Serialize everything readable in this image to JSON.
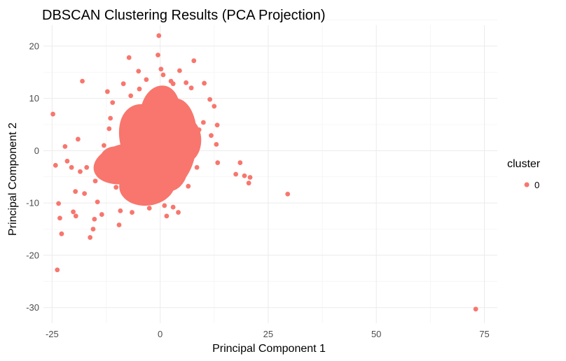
{
  "chart_data": {
    "type": "scatter",
    "title": "DBSCAN Clustering Results (PCA Projection)",
    "xlabel": "Principal Component 1",
    "ylabel": "Principal Component 2",
    "xlim": [
      -27,
      78
    ],
    "ylim": [
      -33,
      24
    ],
    "xticks": [
      -25,
      0,
      25,
      50,
      75
    ],
    "yticks": [
      20,
      10,
      0,
      -10,
      -20,
      -30
    ],
    "xtick_labels": [
      "-25",
      "0",
      "25",
      "50",
      "75"
    ],
    "ytick_labels": [
      "20",
      "10",
      "0",
      "-10",
      "-20",
      "-30"
    ],
    "grid": true,
    "legend": {
      "title": "cluster",
      "placement": "right",
      "entries": [
        "0"
      ]
    },
    "colors": {
      "cluster_0": "#f8766d"
    },
    "series": [
      {
        "name": "0",
        "points": [
          [
            -24.8,
            7.0
          ],
          [
            -24.2,
            -2.8
          ],
          [
            -23.8,
            -22.8
          ],
          [
            -23.2,
            -12.9
          ],
          [
            -23.5,
            -10.1
          ],
          [
            -22.8,
            -15.9
          ],
          [
            -22.0,
            0.8
          ],
          [
            -21.5,
            -2.0
          ],
          [
            -20.5,
            -3.2
          ],
          [
            -20.1,
            -11.7
          ],
          [
            -19.5,
            -12.5
          ],
          [
            -19.6,
            -7.8
          ],
          [
            -19.0,
            2.2
          ],
          [
            -18.0,
            13.3
          ],
          [
            -18.5,
            -4.0
          ],
          [
            -17.5,
            -8.2
          ],
          [
            -17.0,
            -3.2
          ],
          [
            -16.2,
            -16.6
          ],
          [
            -15.5,
            -15.0
          ],
          [
            -15.2,
            -13.1
          ],
          [
            -15.0,
            -5.8
          ],
          [
            -14.5,
            -9.8
          ],
          [
            -14.0,
            -3.5
          ],
          [
            -13.5,
            -12.2
          ],
          [
            -13.0,
            1.0
          ],
          [
            -12.2,
            11.3
          ],
          [
            -11.8,
            4.2
          ],
          [
            -11.0,
            9.2
          ],
          [
            -10.2,
            -7.0
          ],
          [
            -9.5,
            -14.2
          ],
          [
            -9.2,
            -11.5
          ],
          [
            -8.5,
            12.8
          ],
          [
            -7.2,
            17.8
          ],
          [
            -6.8,
            10.5
          ],
          [
            -5.0,
            15.2
          ],
          [
            -4.8,
            11.8
          ],
          [
            -3.2,
            13.6
          ],
          [
            -1.8,
            10.9
          ],
          [
            -0.5,
            18.3
          ],
          [
            -0.3,
            22.0
          ],
          [
            0.2,
            15.6
          ],
          [
            0.7,
            14.5
          ],
          [
            2.5,
            13.3
          ],
          [
            3.0,
            12.8
          ],
          [
            4.5,
            15.3
          ],
          [
            6.0,
            13.0
          ],
          [
            7.2,
            12.0
          ],
          [
            7.8,
            17.2
          ],
          [
            10.2,
            12.9
          ],
          [
            11.5,
            9.8
          ],
          [
            12.5,
            8.5
          ],
          [
            13.2,
            4.9
          ],
          [
            11.8,
            2.9
          ],
          [
            13.0,
            1.2
          ],
          [
            13.3,
            -2.3
          ],
          [
            17.5,
            -4.5
          ],
          [
            18.5,
            -2.3
          ],
          [
            19.5,
            -4.8
          ],
          [
            20.5,
            -6.2
          ],
          [
            20.8,
            -5.1
          ],
          [
            29.5,
            -8.3
          ],
          [
            73.0,
            -30.3
          ],
          [
            1.0,
            -10.5
          ],
          [
            1.5,
            -12.5
          ],
          [
            3.0,
            -10.8
          ],
          [
            4.2,
            -11.8
          ],
          [
            -2.5,
            -11.0
          ],
          [
            -6.5,
            -11.8
          ],
          [
            6.5,
            -6.8
          ],
          [
            8.5,
            -3.2
          ],
          [
            10.0,
            5.4
          ],
          [
            9.0,
            4.0
          ],
          [
            -8.0,
            5.5
          ],
          [
            -11.5,
            6.2
          ],
          [
            -12.8,
            -1.2
          ],
          [
            -10.8,
            -2.6
          ],
          [
            -4.0,
            -9.2
          ],
          [
            0.5,
            -8.8
          ],
          [
            5.5,
            6.0
          ],
          [
            -1.0,
            9.0
          ]
        ]
      }
    ]
  }
}
